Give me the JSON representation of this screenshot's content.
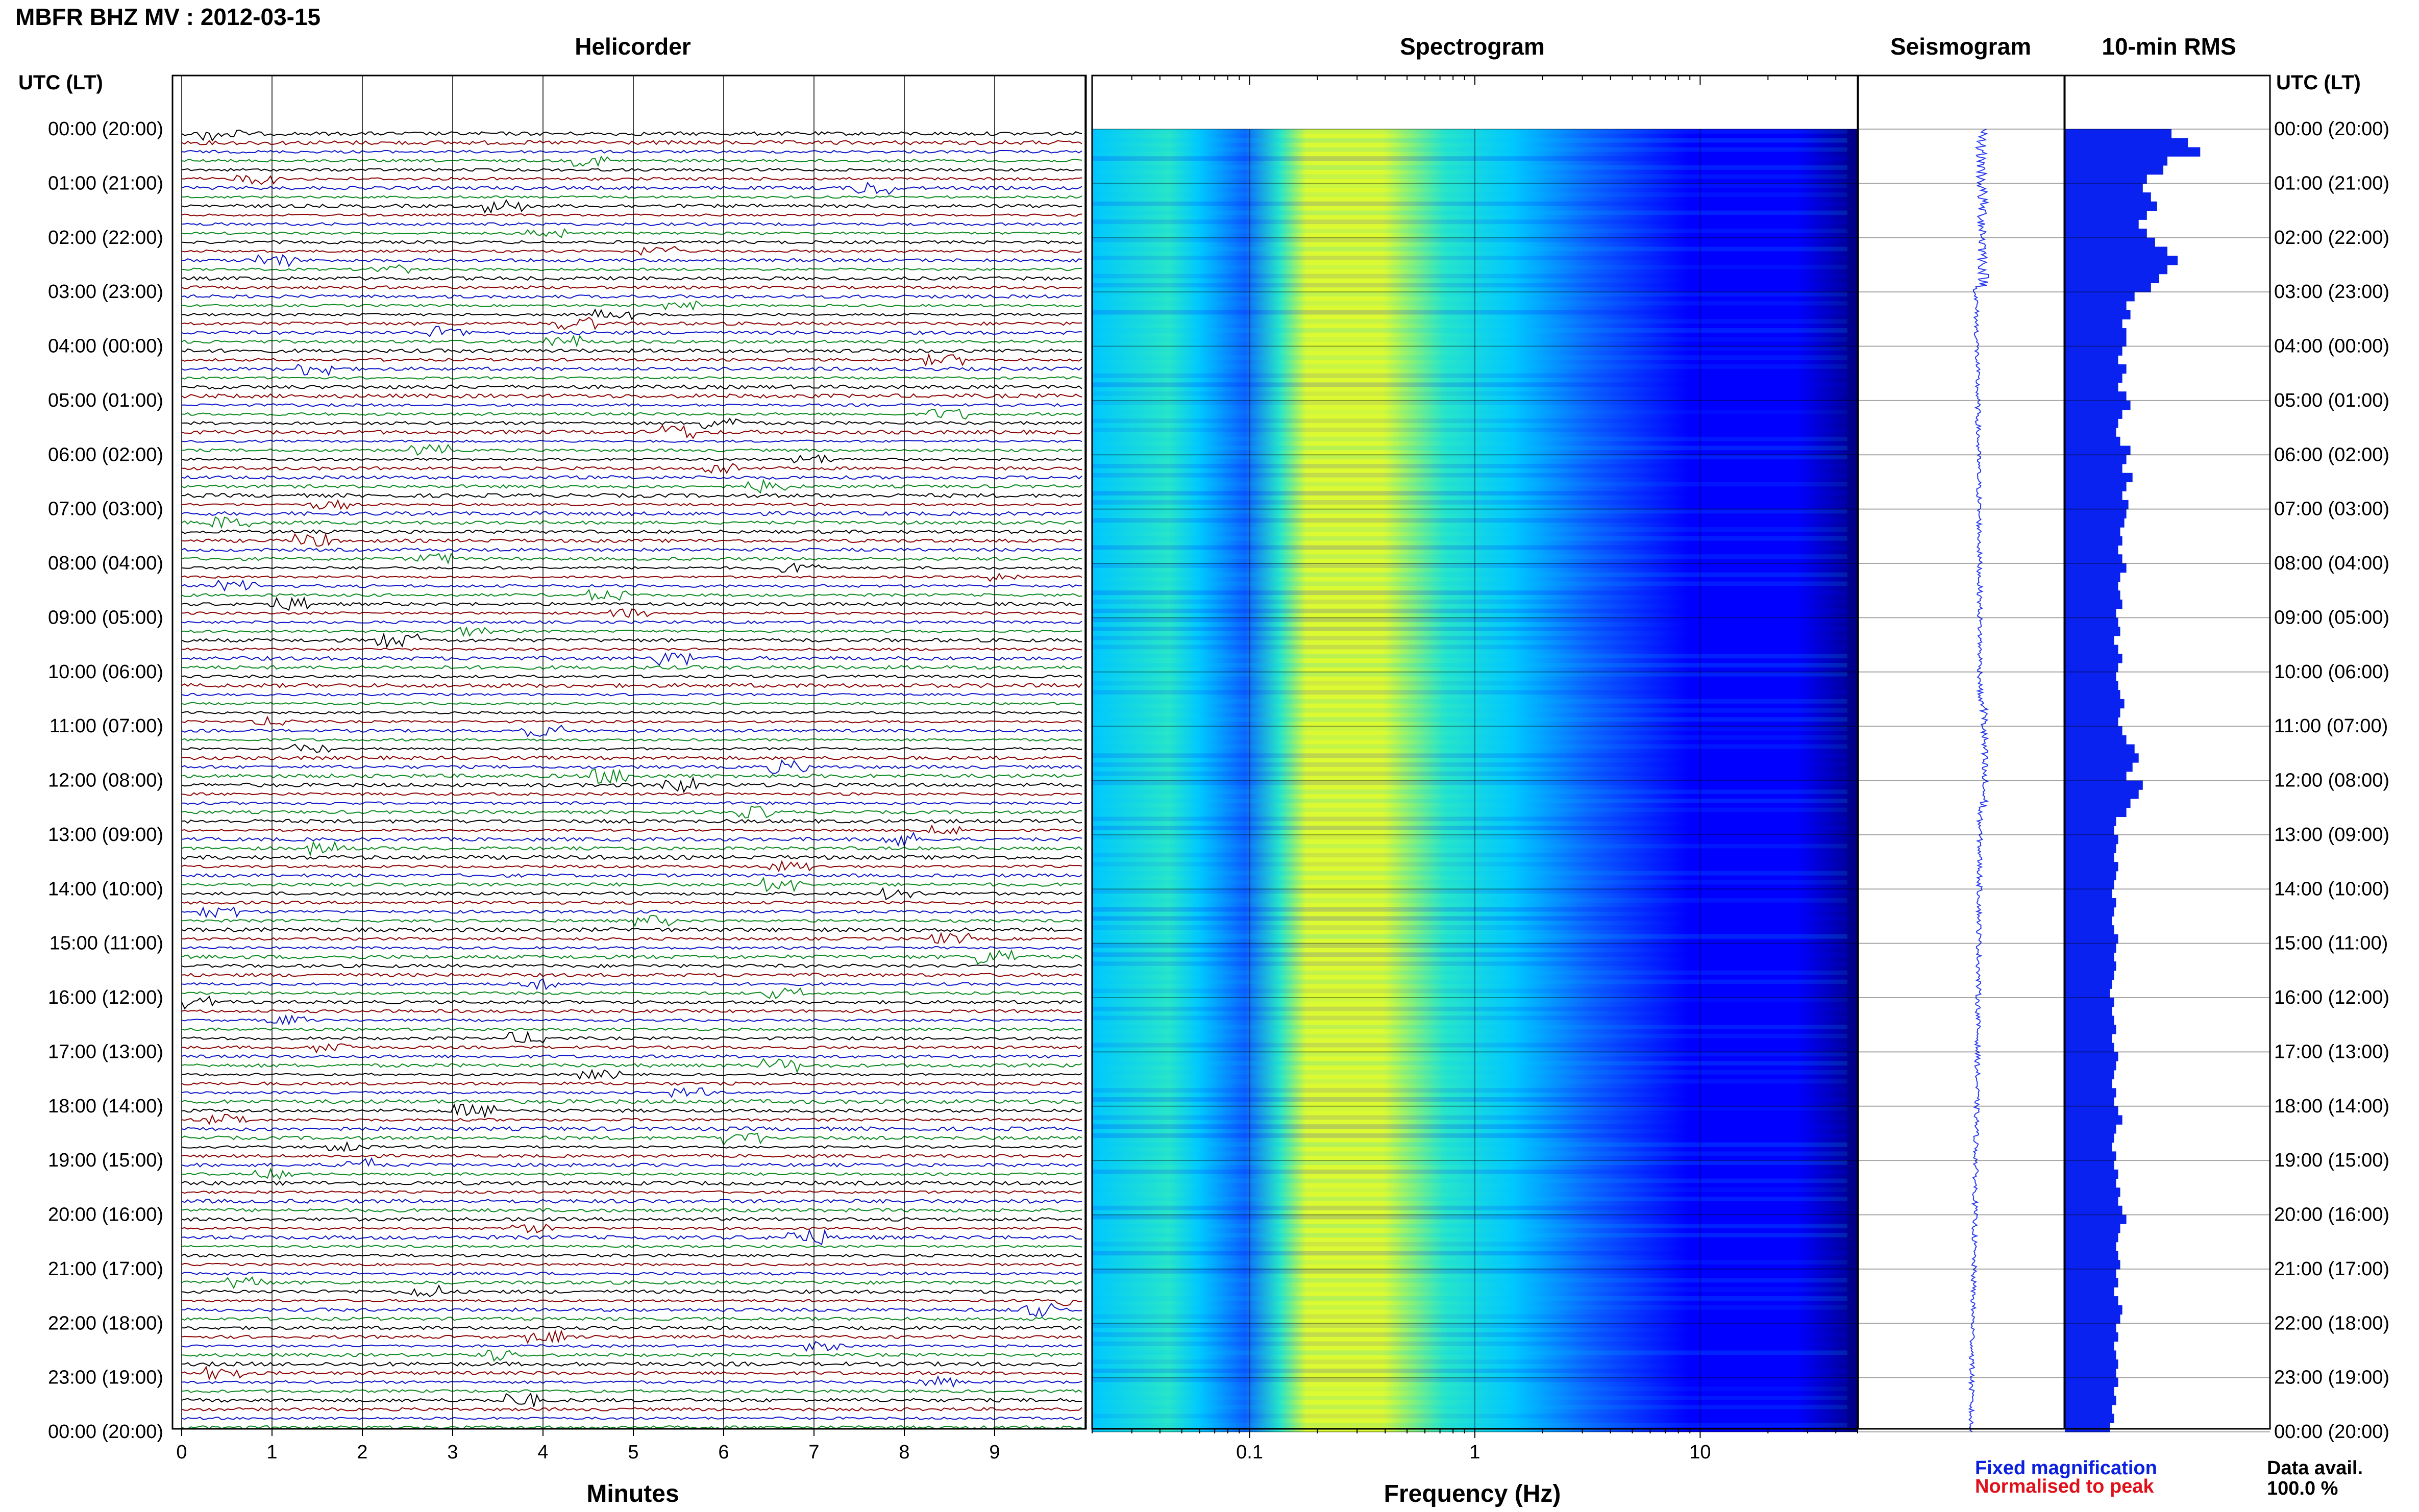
{
  "page": {
    "title": "MBFR BHZ MV : 2012-03-15"
  },
  "panels": {
    "helicorder_title": "Helicorder",
    "spectrogram_title": "Spectrogram",
    "seismogram_title": "Seismogram",
    "rms_title": "10-min RMS"
  },
  "axes": {
    "utc_label": "UTC (LT)",
    "minutes_title": "Minutes",
    "frequency_title": "Frequency (Hz)"
  },
  "legend": {
    "fixed": "Fixed magnification",
    "normalised": "Normalised to peak",
    "avail_label": "Data avail.",
    "avail_value": "100.0 %"
  },
  "colors": {
    "trace_black": "#000000",
    "trace_red": "#8b0000",
    "trace_blue": "#0a14c8",
    "trace_green": "#0a8a1e",
    "seismogram": "#2a3df0",
    "rms_bar": "#0a22f0"
  },
  "chart_data": [
    {
      "type": "line",
      "name": "helicorder",
      "title": "Helicorder",
      "xlabel": "Minutes",
      "xlim": [
        0,
        10
      ],
      "x_ticks": [
        0,
        1,
        2,
        3,
        4,
        5,
        6,
        7,
        8,
        9
      ],
      "time_labels": [
        "00:00 (20:00)",
        "01:00 (21:00)",
        "02:00 (22:00)",
        "03:00 (23:00)",
        "04:00 (00:00)",
        "05:00 (01:00)",
        "06:00 (02:00)",
        "07:00 (03:00)",
        "08:00 (04:00)",
        "09:00 (05:00)",
        "10:00 (06:00)",
        "11:00 (07:00)",
        "12:00 (08:00)",
        "13:00 (09:00)",
        "14:00 (10:00)",
        "15:00 (11:00)",
        "16:00 (12:00)",
        "17:00 (13:00)",
        "18:00 (14:00)",
        "19:00 (15:00)",
        "20:00 (16:00)",
        "21:00 (17:00)",
        "22:00 (18:00)",
        "23:00 (19:00)",
        "00:00 (20:00)"
      ],
      "rows": 144,
      "minutes_per_row": 10,
      "trace_colors": [
        "#000000",
        "#8b0000",
        "#0a14c8",
        "#0a8a1e"
      ]
    },
    {
      "type": "heatmap",
      "name": "spectrogram",
      "title": "Spectrogram",
      "xlabel": "Frequency (Hz)",
      "x_scale": "log",
      "xlim": [
        0.02,
        50
      ],
      "x_ticks": [
        0.1,
        1,
        10
      ],
      "x_tick_labels": [
        "0.1",
        "1",
        "10"
      ],
      "colormap": [
        "#00008b",
        "#0000ff",
        "#0a64ff",
        "#00c8ff",
        "#28e6c8",
        "#dcfa32"
      ],
      "peak_band_hz": [
        0.15,
        0.6
      ]
    },
    {
      "type": "line",
      "name": "seismogram",
      "title": "Seismogram",
      "hours": 24
    },
    {
      "type": "bar",
      "name": "rms",
      "title": "10-min RMS",
      "orientation": "horizontal",
      "bins": 144,
      "values": [
        0.52,
        0.6,
        0.66,
        0.5,
        0.48,
        0.4,
        0.38,
        0.42,
        0.45,
        0.4,
        0.36,
        0.4,
        0.44,
        0.5,
        0.55,
        0.5,
        0.46,
        0.42,
        0.34,
        0.3,
        0.32,
        0.28,
        0.3,
        0.3,
        0.28,
        0.26,
        0.3,
        0.28,
        0.26,
        0.3,
        0.32,
        0.28,
        0.26,
        0.25,
        0.27,
        0.32,
        0.3,
        0.28,
        0.33,
        0.3,
        0.28,
        0.31,
        0.3,
        0.29,
        0.27,
        0.28,
        0.26,
        0.28,
        0.3,
        0.27,
        0.26,
        0.27,
        0.28,
        0.25,
        0.26,
        0.27,
        0.24,
        0.26,
        0.28,
        0.26,
        0.25,
        0.26,
        0.27,
        0.29,
        0.27,
        0.26,
        0.28,
        0.3,
        0.34,
        0.36,
        0.33,
        0.3,
        0.38,
        0.36,
        0.32,
        0.3,
        0.25,
        0.24,
        0.26,
        0.25,
        0.24,
        0.26,
        0.25,
        0.24,
        0.23,
        0.25,
        0.24,
        0.23,
        0.24,
        0.26,
        0.25,
        0.24,
        0.25,
        0.24,
        0.23,
        0.22,
        0.24,
        0.23,
        0.24,
        0.25,
        0.23,
        0.24,
        0.26,
        0.25,
        0.24,
        0.23,
        0.25,
        0.24,
        0.26,
        0.28,
        0.25,
        0.24,
        0.23,
        0.25,
        0.24,
        0.26,
        0.25,
        0.27,
        0.26,
        0.28,
        0.3,
        0.27,
        0.26,
        0.25,
        0.26,
        0.27,
        0.25,
        0.26,
        0.24,
        0.26,
        0.28,
        0.27,
        0.25,
        0.26,
        0.24,
        0.25,
        0.26,
        0.25,
        0.26,
        0.24,
        0.25,
        0.23,
        0.24,
        0.22
      ]
    }
  ]
}
